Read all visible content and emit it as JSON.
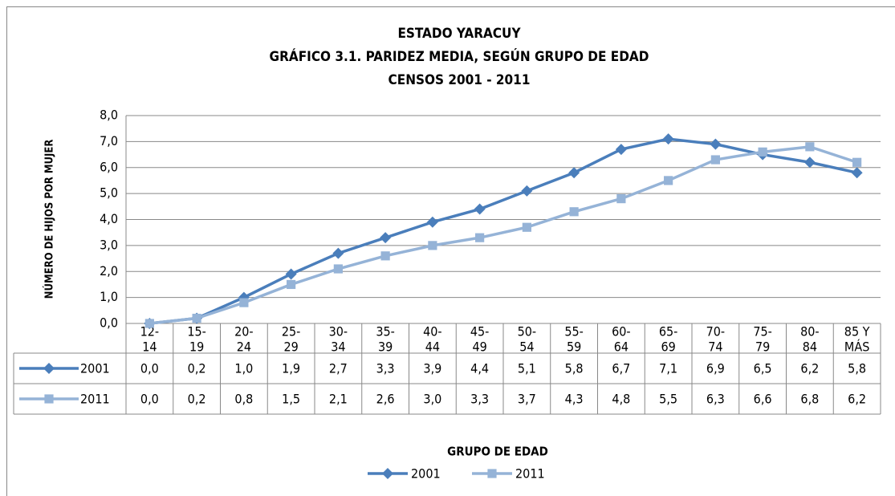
{
  "chart_data": {
    "type": "line",
    "title": [
      "ESTADO YARACUY",
      "GRÁFICO 3.1. PARIDEZ MEDIA, SEGÚN GRUPO DE EDAD",
      "CENSOS 2001 - 2011"
    ],
    "y_label": "NÚMERO DE HIJOS POR MUJER",
    "x_label": "GRUPO DE EDAD",
    "categories": [
      [
        "12-",
        "14"
      ],
      [
        "15-",
        "19"
      ],
      [
        "20-",
        "24"
      ],
      [
        "25-",
        "29"
      ],
      [
        "30-",
        "34"
      ],
      [
        "35-",
        "39"
      ],
      [
        "40-",
        "44"
      ],
      [
        "45-",
        "49"
      ],
      [
        "50-",
        "54"
      ],
      [
        "55-",
        "59"
      ],
      [
        "60-",
        "64"
      ],
      [
        "65-",
        "69"
      ],
      [
        "70-",
        "74"
      ],
      [
        "75-",
        "79"
      ],
      [
        "80-",
        "84"
      ],
      [
        "85 Y",
        "MÁS"
      ]
    ],
    "series": [
      {
        "name": "2001",
        "color": "#4a7ebb",
        "marker": "diamond",
        "values": [
          0.0,
          0.2,
          1.0,
          1.9,
          2.7,
          3.3,
          3.9,
          4.4,
          5.1,
          5.8,
          6.7,
          7.1,
          6.9,
          6.5,
          6.2,
          5.8
        ],
        "value_labels": [
          "0,0",
          "0,2",
          "1,0",
          "1,9",
          "2,7",
          "3,3",
          "3,9",
          "4,4",
          "5,1",
          "5,8",
          "6,7",
          "7,1",
          "6,9",
          "6,5",
          "6,2",
          "5,8"
        ]
      },
      {
        "name": "2011",
        "color": "#95b3d7",
        "marker": "square",
        "values": [
          0.0,
          0.2,
          0.8,
          1.5,
          2.1,
          2.6,
          3.0,
          3.3,
          3.7,
          4.3,
          4.8,
          5.5,
          6.3,
          6.6,
          6.8,
          6.2
        ],
        "value_labels": [
          "0,0",
          "0,2",
          "0,8",
          "1,5",
          "2,1",
          "2,6",
          "3,0",
          "3,3",
          "3,7",
          "4,3",
          "4,8",
          "5,5",
          "6,3",
          "6,6",
          "6,8",
          "6,2"
        ]
      }
    ],
    "ylim": [
      0,
      8
    ],
    "yticks": [
      {
        "value": 0,
        "label": "0,0"
      },
      {
        "value": 1,
        "label": "1,0"
      },
      {
        "value": 2,
        "label": "2,0"
      },
      {
        "value": 3,
        "label": "3,0"
      },
      {
        "value": 4,
        "label": "4,0"
      },
      {
        "value": 5,
        "label": "5,0"
      },
      {
        "value": 6,
        "label": "6,0"
      },
      {
        "value": 7,
        "label": "7,0"
      },
      {
        "value": 8,
        "label": "8,0"
      }
    ],
    "grid": true,
    "legend": "bottom"
  }
}
